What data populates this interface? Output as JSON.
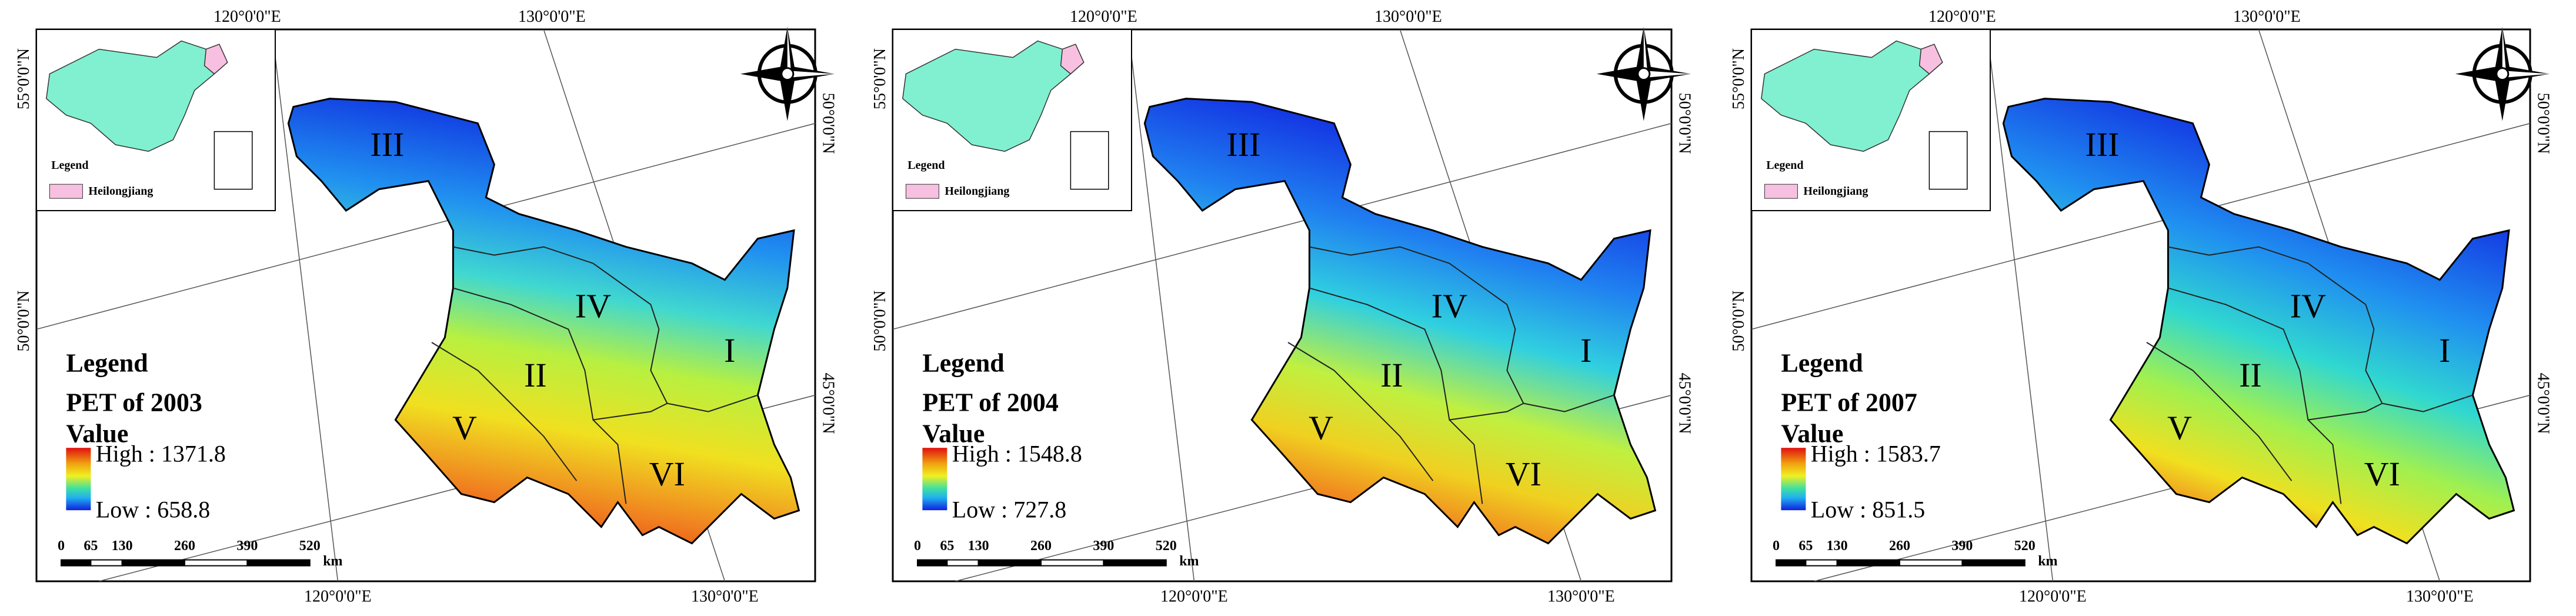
{
  "coordinates": {
    "lon_120": "120°0'0\"E",
    "lon_130": "130°0'0\"E",
    "lat_55": "55°0'0\"N",
    "lat_50": "50°0'0\"N",
    "lat_45": "45°0'0\"N"
  },
  "regions": [
    "I",
    "II",
    "III",
    "IV",
    "V",
    "VI"
  ],
  "scale_bar": {
    "labels": [
      "0",
      "65",
      "130",
      "260",
      "390",
      "520"
    ],
    "unit": "km"
  },
  "inset": {
    "legend": "Legend",
    "province": "Heilongjiang"
  },
  "panels": [
    {
      "legend": "Legend",
      "title": "PET of 2003",
      "value": "Value",
      "high": "High : 1371.8",
      "low": "Low : 658.8"
    },
    {
      "legend": "Legend",
      "title": "PET of 2004",
      "value": "Value",
      "high": "High : 1548.8",
      "low": "Low : 727.8"
    },
    {
      "legend": "Legend",
      "title": "PET of 2007",
      "value": "Value",
      "high": "High : 1583.7",
      "low": "Low : 851.5"
    }
  ]
}
